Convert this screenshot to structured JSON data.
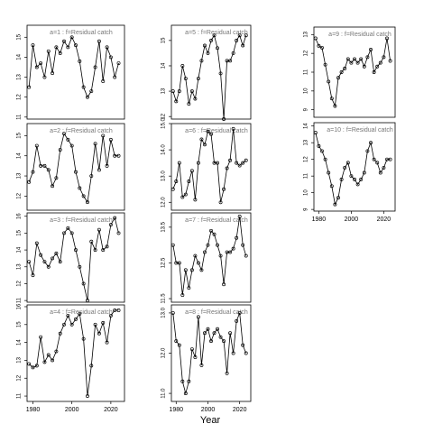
{
  "xlabel": "Year",
  "chart_data": [
    {
      "type": "line",
      "title": "a=1  :  f=Residual catch",
      "xlim": [
        1977,
        2027
      ],
      "ylim": [
        10.9,
        15.6
      ],
      "yticks": [
        11,
        12,
        13,
        14,
        15
      ],
      "x": [
        1978,
        1980,
        1982,
        1984,
        1986,
        1988,
        1990,
        1992,
        1994,
        1996,
        1998,
        2000,
        2002,
        2004,
        2006,
        2008,
        2010,
        2012,
        2014,
        2016,
        2018,
        2020,
        2022,
        2024
      ],
      "values": [
        12.5,
        14.6,
        13.5,
        13.7,
        13.0,
        14.3,
        13.2,
        14.5,
        14.2,
        14.8,
        14.5,
        15.0,
        14.6,
        13.8,
        12.5,
        12.0,
        12.3,
        13.5,
        14.8,
        12.8,
        14.5,
        14.0,
        13.0,
        13.7
      ]
    },
    {
      "type": "line",
      "title": "a=2  :  f=Residual catch",
      "xlim": [
        1977,
        2027
      ],
      "ylim": [
        11.3,
        15.6
      ],
      "yticks": [
        12,
        13,
        14,
        15
      ],
      "x": [
        1978,
        1980,
        1982,
        1984,
        1986,
        1988,
        1990,
        1992,
        1994,
        1996,
        1998,
        2000,
        2002,
        2004,
        2006,
        2008,
        2010,
        2012,
        2014,
        2016,
        2018,
        2020,
        2022,
        2024
      ],
      "values": [
        12.7,
        13.2,
        14.5,
        13.5,
        13.5,
        13.3,
        12.5,
        12.9,
        14.3,
        15.1,
        14.8,
        14.5,
        13.2,
        12.4,
        12.0,
        11.7,
        13.0,
        14.6,
        13.3,
        15.0,
        13.5,
        14.8,
        14.0,
        14.0
      ]
    },
    {
      "type": "line",
      "title": "a=3  :  f=Residual catch",
      "xlim": [
        1977,
        2027
      ],
      "ylim": [
        10.9,
        16.2
      ],
      "yticks": [
        11,
        12,
        13,
        14,
        15,
        16
      ],
      "x": [
        1978,
        1980,
        1982,
        1984,
        1986,
        1988,
        1990,
        1992,
        1994,
        1996,
        1998,
        2000,
        2002,
        2004,
        2006,
        2008,
        2010,
        2012,
        2014,
        2016,
        2018,
        2020,
        2022,
        2024
      ],
      "values": [
        13.3,
        12.5,
        14.4,
        13.7,
        13.3,
        13.0,
        13.5,
        13.8,
        13.3,
        15.0,
        15.3,
        15.0,
        14.0,
        13.0,
        12.0,
        11.0,
        14.5,
        14.0,
        15.2,
        14.0,
        14.2,
        15.5,
        15.9,
        15.0
      ]
    },
    {
      "type": "line",
      "title": "a=4  :  f=Residual catch",
      "xlim": [
        1977,
        2027
      ],
      "ylim": [
        10.7,
        16.1
      ],
      "yticks": [
        11,
        12,
        13,
        14,
        15,
        16
      ],
      "xticks": [
        1980,
        2000,
        2020
      ],
      "x": [
        1978,
        1980,
        1982,
        1984,
        1986,
        1988,
        1990,
        1992,
        1994,
        1996,
        1998,
        2000,
        2002,
        2004,
        2006,
        2008,
        2010,
        2012,
        2014,
        2016,
        2018,
        2020,
        2022,
        2024
      ],
      "values": [
        12.8,
        12.6,
        12.7,
        14.3,
        12.9,
        13.3,
        13.0,
        13.5,
        14.5,
        15.0,
        15.5,
        15.0,
        15.3,
        15.6,
        14.2,
        11.0,
        12.7,
        15.0,
        14.5,
        15.1,
        14.0,
        15.5,
        15.8,
        15.8
      ]
    },
    {
      "type": "line",
      "title": "a=5  :  f=Residual catch",
      "xlim": [
        1977,
        2027
      ],
      "ylim": [
        11.9,
        15.6
      ],
      "yticks": [
        12,
        13,
        14,
        15
      ],
      "x": [
        1978,
        1980,
        1982,
        1984,
        1986,
        1988,
        1990,
        1992,
        1994,
        1996,
        1998,
        2000,
        2002,
        2004,
        2006,
        2008,
        2010,
        2012,
        2014,
        2016,
        2018,
        2020,
        2022,
        2024
      ],
      "values": [
        13.0,
        12.6,
        13.0,
        14.0,
        13.5,
        12.5,
        13.0,
        12.7,
        13.5,
        14.2,
        14.8,
        14.5,
        15.0,
        15.2,
        14.7,
        13.7,
        11.9,
        14.2,
        14.2,
        14.5,
        15.0,
        15.2,
        14.8,
        15.2
      ]
    },
    {
      "type": "line",
      "title": "a=6  :  f=Residual catch",
      "xlim": [
        1977,
        2027
      ],
      "ylim": [
        11.7,
        15.0
      ],
      "yticks": [
        {
          "value": 12,
          "label": "12.0"
        },
        {
          "value": 13,
          "label": "13.0"
        },
        {
          "value": 14,
          "label": "14.0"
        },
        {
          "value": 15,
          "label": "15.0"
        }
      ],
      "x": [
        1978,
        1980,
        1982,
        1984,
        1986,
        1988,
        1990,
        1992,
        1994,
        1996,
        1998,
        2000,
        2002,
        2004,
        2006,
        2008,
        2010,
        2012,
        2014,
        2016,
        2018,
        2020,
        2022,
        2024
      ],
      "values": [
        12.5,
        12.8,
        13.5,
        12.2,
        12.3,
        12.8,
        13.2,
        12.1,
        13.5,
        14.4,
        14.2,
        14.7,
        14.6,
        13.5,
        13.5,
        12.0,
        12.5,
        13.3,
        13.6,
        14.8,
        13.5,
        13.4,
        13.5,
        13.6
      ]
    },
    {
      "type": "line",
      "title": "a=7  :  f=Residual catch",
      "xlim": [
        1977,
        2027
      ],
      "ylim": [
        11.4,
        13.9
      ],
      "yticks": [
        11.5,
        12.5,
        13.5
      ],
      "x": [
        1978,
        1980,
        1982,
        1984,
        1986,
        1988,
        1990,
        1992,
        1994,
        1996,
        1998,
        2000,
        2002,
        2004,
        2006,
        2008,
        2010,
        2012,
        2014,
        2016,
        2018,
        2020,
        2022,
        2024
      ],
      "values": [
        13.0,
        12.5,
        12.5,
        11.6,
        12.3,
        11.8,
        12.3,
        12.7,
        12.5,
        12.3,
        12.8,
        13.0,
        13.4,
        13.3,
        13.0,
        12.7,
        11.9,
        12.8,
        12.8,
        12.9,
        13.2,
        13.8,
        13.0,
        12.7
      ]
    },
    {
      "type": "line",
      "title": "a=8  :  f=Residual catch",
      "xlim": [
        1977,
        2027
      ],
      "ylim": [
        10.8,
        13.2
      ],
      "yticks": [
        {
          "value": 11,
          "label": "11.0"
        },
        {
          "value": 12,
          "label": "12.0"
        },
        {
          "value": 13,
          "label": "13.0"
        }
      ],
      "xticks": [
        1980,
        2000,
        2020
      ],
      "x": [
        1978,
        1980,
        1982,
        1984,
        1986,
        1988,
        1990,
        1992,
        1994,
        1996,
        1998,
        2000,
        2002,
        2004,
        2006,
        2008,
        2010,
        2012,
        2014,
        2016,
        2018,
        2020,
        2022,
        2024
      ],
      "values": [
        13.0,
        12.3,
        12.2,
        11.3,
        11.0,
        11.3,
        12.1,
        11.9,
        12.9,
        11.7,
        12.5,
        12.6,
        12.3,
        12.5,
        12.6,
        12.4,
        12.3,
        11.5,
        12.5,
        12.0,
        12.8,
        13.0,
        12.2,
        12.0
      ]
    },
    {
      "type": "line",
      "title": "a=9  :  f=Residual catch",
      "xlim": [
        1977,
        2027
      ],
      "ylim": [
        8.6,
        13.4
      ],
      "yticks": [
        9,
        10,
        11,
        12,
        13
      ],
      "x": [
        1978,
        1980,
        1982,
        1984,
        1986,
        1988,
        1990,
        1992,
        1994,
        1996,
        1998,
        2000,
        2002,
        2004,
        2006,
        2008,
        2010,
        2012,
        2014,
        2016,
        2018,
        2020,
        2022,
        2024
      ],
      "values": [
        12.8,
        12.4,
        12.3,
        11.4,
        10.5,
        9.6,
        9.2,
        10.7,
        11.0,
        11.2,
        11.7,
        11.5,
        11.7,
        11.5,
        11.7,
        11.3,
        11.8,
        12.2,
        11.0,
        11.3,
        11.5,
        11.8,
        12.8,
        11.6
      ]
    },
    {
      "type": "line",
      "title": "a=10  :  f=Residual catch",
      "xlim": [
        1977,
        2027
      ],
      "ylim": [
        8.9,
        14.2
      ],
      "yticks": [
        9,
        10,
        11,
        12,
        13,
        14
      ],
      "xticks": [
        1980,
        2000,
        2020
      ],
      "x": [
        1978,
        1980,
        1982,
        1984,
        1986,
        1988,
        1990,
        1992,
        1994,
        1996,
        1998,
        2000,
        2002,
        2004,
        2006,
        2008,
        2010,
        2012,
        2014,
        2016,
        2018,
        2020,
        2022,
        2024
      ],
      "values": [
        13.6,
        12.8,
        12.5,
        12.0,
        11.2,
        10.4,
        9.3,
        9.7,
        10.8,
        11.5,
        11.8,
        11.0,
        10.8,
        10.5,
        10.8,
        11.2,
        12.5,
        13.0,
        12.0,
        11.8,
        11.2,
        11.5,
        12.0,
        12.0
      ]
    }
  ]
}
